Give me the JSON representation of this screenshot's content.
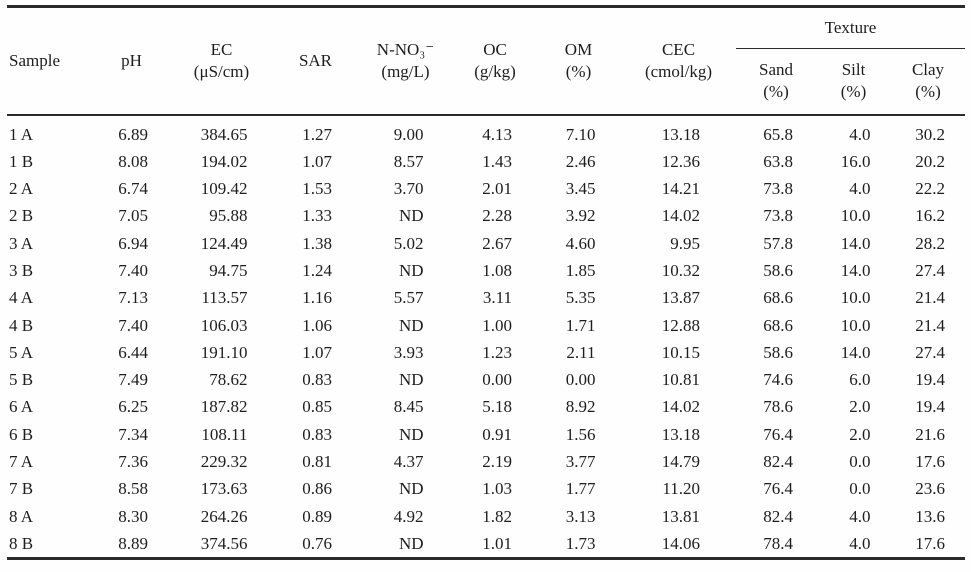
{
  "table": {
    "columns": [
      {
        "label": "Sample",
        "unit": ""
      },
      {
        "label": "pH",
        "unit": ""
      },
      {
        "label": "EC",
        "unit": "(μS/cm)"
      },
      {
        "label": "SAR",
        "unit": ""
      },
      {
        "label": "N-NO₃⁻",
        "unit": "(mg/L)"
      },
      {
        "label": "OC",
        "unit": "(g/kg)"
      },
      {
        "label": "OM",
        "unit": "(%)"
      },
      {
        "label": "CEC",
        "unit": "(cmol/kg)"
      }
    ],
    "texture_group": {
      "label": "Texture",
      "columns": [
        {
          "label": "Sand",
          "unit": "(%)"
        },
        {
          "label": "Silt",
          "unit": "(%)"
        },
        {
          "label": "Clay",
          "unit": "(%)"
        }
      ]
    },
    "rows": [
      [
        "1 A",
        "6.89",
        "384.65",
        "1.27",
        "9.00",
        "4.13",
        "7.10",
        "13.18",
        "65.8",
        "4.0",
        "30.2"
      ],
      [
        "1 B",
        "8.08",
        "194.02",
        "1.07",
        "8.57",
        "1.43",
        "2.46",
        "12.36",
        "63.8",
        "16.0",
        "20.2"
      ],
      [
        "2 A",
        "6.74",
        "109.42",
        "1.53",
        "3.70",
        "2.01",
        "3.45",
        "14.21",
        "73.8",
        "4.0",
        "22.2"
      ],
      [
        "2 B",
        "7.05",
        "95.88",
        "1.33",
        "ND",
        "2.28",
        "3.92",
        "14.02",
        "73.8",
        "10.0",
        "16.2"
      ],
      [
        "3 A",
        "6.94",
        "124.49",
        "1.38",
        "5.02",
        "2.67",
        "4.60",
        "9.95",
        "57.8",
        "14.0",
        "28.2"
      ],
      [
        "3 B",
        "7.40",
        "94.75",
        "1.24",
        "ND",
        "1.08",
        "1.85",
        "10.32",
        "58.6",
        "14.0",
        "27.4"
      ],
      [
        "4 A",
        "7.13",
        "113.57",
        "1.16",
        "5.57",
        "3.11",
        "5.35",
        "13.87",
        "68.6",
        "10.0",
        "21.4"
      ],
      [
        "4 B",
        "7.40",
        "106.03",
        "1.06",
        "ND",
        "1.00",
        "1.71",
        "12.88",
        "68.6",
        "10.0",
        "21.4"
      ],
      [
        "5 A",
        "6.44",
        "191.10",
        "1.07",
        "3.93",
        "1.23",
        "2.11",
        "10.15",
        "58.6",
        "14.0",
        "27.4"
      ],
      [
        "5 B",
        "7.49",
        "78.62",
        "0.83",
        "ND",
        "0.00",
        "0.00",
        "10.81",
        "74.6",
        "6.0",
        "19.4"
      ],
      [
        "6 A",
        "6.25",
        "187.82",
        "0.85",
        "8.45",
        "5.18",
        "8.92",
        "14.02",
        "78.6",
        "2.0",
        "19.4"
      ],
      [
        "6 B",
        "7.34",
        "108.11",
        "0.83",
        "ND",
        "0.91",
        "1.56",
        "13.18",
        "76.4",
        "2.0",
        "21.6"
      ],
      [
        "7 A",
        "7.36",
        "229.32",
        "0.81",
        "4.37",
        "2.19",
        "3.77",
        "14.79",
        "82.4",
        "0.0",
        "17.6"
      ],
      [
        "7 B",
        "8.58",
        "173.63",
        "0.86",
        "ND",
        "1.03",
        "1.77",
        "11.20",
        "76.4",
        "0.0",
        "23.6"
      ],
      [
        "8 A",
        "8.30",
        "264.26",
        "0.89",
        "4.92",
        "1.82",
        "3.13",
        "13.81",
        "82.4",
        "4.0",
        "13.6"
      ],
      [
        "8 B",
        "8.89",
        "374.56",
        "0.76",
        "ND",
        "1.01",
        "1.73",
        "14.06",
        "78.4",
        "4.0",
        "17.6"
      ]
    ]
  }
}
